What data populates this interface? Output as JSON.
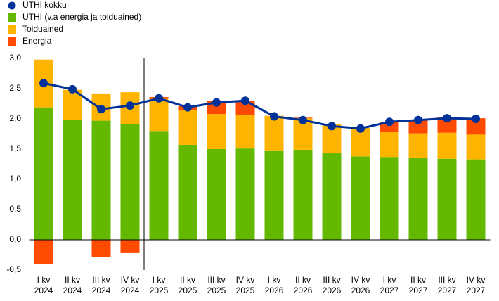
{
  "chart_data": {
    "type": "bar",
    "stacked": true,
    "categories": [
      [
        "I kv",
        "2024"
      ],
      [
        "II kv",
        "2024"
      ],
      [
        "III kv",
        "2024"
      ],
      [
        "IV kv",
        "2024"
      ],
      [
        "I kv",
        "2025"
      ],
      [
        "II kv",
        "2025"
      ],
      [
        "III kv",
        "2025"
      ],
      [
        "IV kv",
        "2025"
      ],
      [
        "I kv",
        "2026"
      ],
      [
        "II kv",
        "2026"
      ],
      [
        "III kv",
        "2026"
      ],
      [
        "IV kv",
        "2026"
      ],
      [
        "I kv",
        "2027"
      ],
      [
        "II kv",
        "2027"
      ],
      [
        "III kv",
        "2027"
      ],
      [
        "IV kv",
        "2027"
      ]
    ],
    "series": [
      {
        "name": "ÜTHI kokku",
        "type": "line",
        "color": "#003299",
        "values": [
          2.59,
          2.49,
          2.16,
          2.22,
          2.34,
          2.19,
          2.27,
          2.3,
          2.04,
          1.98,
          1.88,
          1.84,
          1.95,
          1.98,
          2.01,
          2.0
        ]
      },
      {
        "name": "ÜTHI (v.a energia ja toiduained)",
        "type": "bar",
        "color": "#65b800",
        "values": [
          2.19,
          1.98,
          1.97,
          1.91,
          1.8,
          1.57,
          1.5,
          1.51,
          1.48,
          1.49,
          1.43,
          1.38,
          1.37,
          1.35,
          1.34,
          1.33
        ]
      },
      {
        "name": "Toiduained",
        "type": "bar",
        "color": "#ffb400",
        "values": [
          0.79,
          0.5,
          0.45,
          0.53,
          0.53,
          0.57,
          0.58,
          0.55,
          0.57,
          0.52,
          0.48,
          0.47,
          0.41,
          0.41,
          0.43,
          0.41
        ]
      },
      {
        "name": "Energia",
        "type": "bar",
        "color": "#ff4b00",
        "values": [
          -0.4,
          0,
          -0.28,
          -0.22,
          0.03,
          0.07,
          0.22,
          0.24,
          0,
          0.01,
          0,
          0,
          0.17,
          0.22,
          0.26,
          0.27
        ]
      }
    ],
    "ylim": [
      -0.5,
      3.0
    ],
    "yticks": [
      {
        "value": -0.5,
        "label": "-0,5"
      },
      {
        "value": 0,
        "label": "0,0"
      },
      {
        "value": 0.5,
        "label": "0,5"
      },
      {
        "value": 1,
        "label": "1,0"
      },
      {
        "value": 1.5,
        "label": "1,5"
      },
      {
        "value": 2,
        "label": "2,0"
      },
      {
        "value": 2.5,
        "label": "2,5"
      },
      {
        "value": 3,
        "label": "3,0"
      }
    ],
    "grid": false,
    "legend": "top-left"
  }
}
